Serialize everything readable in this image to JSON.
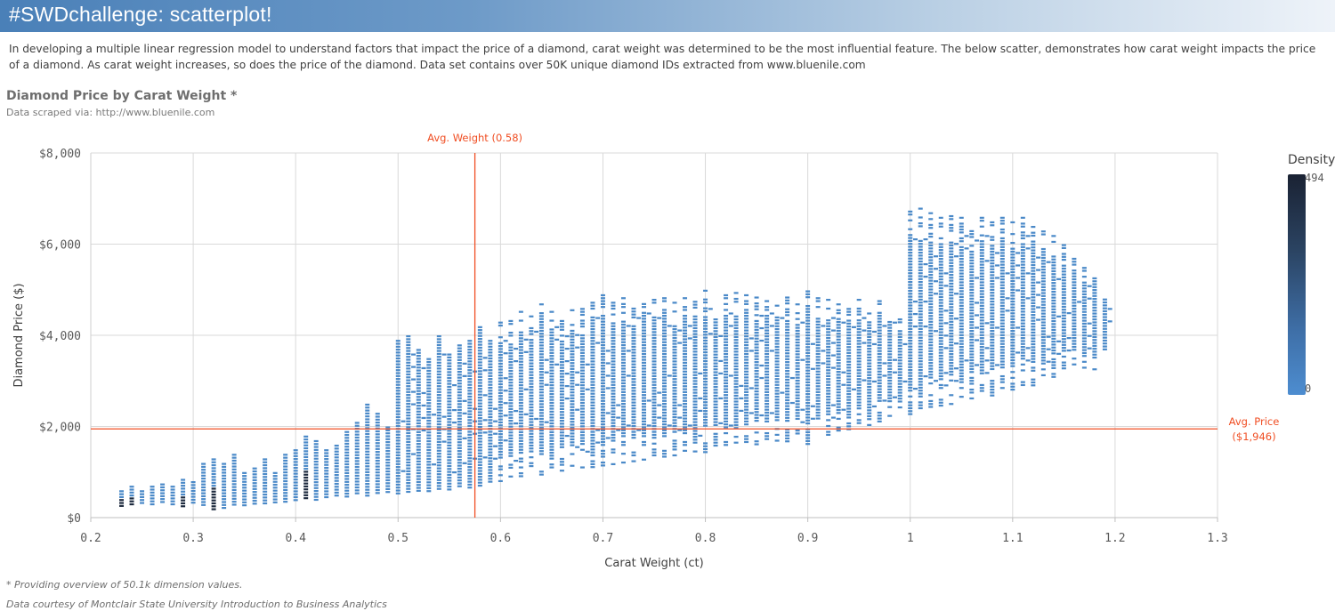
{
  "banner": {
    "title": "#SWDchallenge: scatterplot!"
  },
  "intro": {
    "text": "In developing a multiple linear regression model to understand factors that impact the price of a diamond, carat weight was determined to be the most influential feature. The below scatter, demonstrates how carat weight impacts the price of a diamond. As carat weight increases, so does the price of the diamond. Data set contains over 50K unique diamond IDs extracted from www.bluenile.com"
  },
  "chart_data": {
    "type": "scatter",
    "title": "Diamond Price by Carat Weight *",
    "subtitle": "Data scraped via: http://www.bluenile.com",
    "xlabel": "Carat Weight (ct)",
    "ylabel": "Diamond Price ($)",
    "xlim": [
      0.2,
      1.3
    ],
    "ylim": [
      0,
      8000
    ],
    "x_ticks": [
      "0.2",
      "0.3",
      "0.4",
      "0.5",
      "0.6",
      "0.7",
      "0.8",
      "0.9",
      "1",
      "1.1",
      "1.2",
      "1.3"
    ],
    "y_ticks": [
      "$0",
      "$2,000",
      "$4,000",
      "$6,000",
      "$8,000"
    ],
    "grid": true,
    "avg_weight": {
      "value": 0.575,
      "label": "Avg. Weight (0.58)",
      "color": "#f04e23"
    },
    "avg_price": {
      "value": 1946,
      "label_line1": "Avg. Price",
      "label_line2": "($1,946)",
      "color": "#f04e23"
    },
    "point_color": "#4a89c8",
    "dense_color": "#1e2b3f",
    "legend": {
      "title": "Density",
      "max": "494",
      "min": "0",
      "placement": "right"
    },
    "columns": [
      {
        "x": 0.23,
        "ymin": 250,
        "ymax": 600,
        "dense": true
      },
      {
        "x": 0.24,
        "ymin": 250,
        "ymax": 700,
        "dense": true
      },
      {
        "x": 0.25,
        "ymin": 300,
        "ymax": 600
      },
      {
        "x": 0.26,
        "ymin": 250,
        "ymax": 700
      },
      {
        "x": 0.27,
        "ymin": 300,
        "ymax": 750
      },
      {
        "x": 0.28,
        "ymin": 250,
        "ymax": 700
      },
      {
        "x": 0.29,
        "ymin": 250,
        "ymax": 850,
        "dense": true
      },
      {
        "x": 0.3,
        "ymin": 300,
        "ymax": 800
      },
      {
        "x": 0.31,
        "ymin": 250,
        "ymax": 1200
      },
      {
        "x": 0.32,
        "ymin": 200,
        "ymax": 1300,
        "dense": true
      },
      {
        "x": 0.33,
        "ymin": 200,
        "ymax": 1200
      },
      {
        "x": 0.34,
        "ymin": 250,
        "ymax": 1400
      },
      {
        "x": 0.35,
        "ymin": 250,
        "ymax": 1000
      },
      {
        "x": 0.36,
        "ymin": 300,
        "ymax": 1100
      },
      {
        "x": 0.37,
        "ymin": 300,
        "ymax": 1300
      },
      {
        "x": 0.38,
        "ymin": 350,
        "ymax": 1000
      },
      {
        "x": 0.39,
        "ymin": 350,
        "ymax": 1400
      },
      {
        "x": 0.4,
        "ymin": 350,
        "ymax": 1500
      },
      {
        "x": 0.41,
        "ymin": 400,
        "ymax": 1800,
        "dense": true
      },
      {
        "x": 0.42,
        "ymin": 400,
        "ymax": 1700
      },
      {
        "x": 0.43,
        "ymin": 450,
        "ymax": 1500
      },
      {
        "x": 0.44,
        "ymin": 500,
        "ymax": 1600
      },
      {
        "x": 0.45,
        "ymin": 450,
        "ymax": 1900
      },
      {
        "x": 0.46,
        "ymin": 500,
        "ymax": 2100
      },
      {
        "x": 0.47,
        "ymin": 450,
        "ymax": 2500
      },
      {
        "x": 0.48,
        "ymin": 500,
        "ymax": 2300
      },
      {
        "x": 0.49,
        "ymin": 550,
        "ymax": 2000
      },
      {
        "x": 0.5,
        "ymin": 500,
        "ymax": 3900
      },
      {
        "x": 0.51,
        "ymin": 550,
        "ymax": 4000
      },
      {
        "x": 0.52,
        "ymin": 550,
        "ymax": 3700
      },
      {
        "x": 0.53,
        "ymin": 600,
        "ymax": 3500
      },
      {
        "x": 0.54,
        "ymin": 600,
        "ymax": 4000
      },
      {
        "x": 0.55,
        "ymin": 600,
        "ymax": 3600
      },
      {
        "x": 0.56,
        "ymin": 650,
        "ymax": 3800
      },
      {
        "x": 0.57,
        "ymin": 650,
        "ymax": 3900
      },
      {
        "x": 0.58,
        "ymin": 700,
        "ymax": 4200
      },
      {
        "x": 0.59,
        "ymin": 750,
        "ymax": 3900
      },
      {
        "x": 0.6,
        "ymin": 800,
        "ymax": 4300
      },
      {
        "x": 0.61,
        "ymin": 850,
        "ymax": 4400
      },
      {
        "x": 0.62,
        "ymin": 850,
        "ymax": 4600
      },
      {
        "x": 0.63,
        "ymin": 900,
        "ymax": 4500
      },
      {
        "x": 0.64,
        "ymin": 950,
        "ymax": 4700
      },
      {
        "x": 0.65,
        "ymin": 950,
        "ymax": 4600
      },
      {
        "x": 0.66,
        "ymin": 1000,
        "ymax": 4400
      },
      {
        "x": 0.67,
        "ymin": 1000,
        "ymax": 4700
      },
      {
        "x": 0.68,
        "ymin": 1050,
        "ymax": 4600
      },
      {
        "x": 0.69,
        "ymin": 1100,
        "ymax": 4800
      },
      {
        "x": 0.7,
        "ymin": 1100,
        "ymax": 4900
      },
      {
        "x": 0.71,
        "ymin": 1150,
        "ymax": 4800
      },
      {
        "x": 0.72,
        "ymin": 1200,
        "ymax": 4900
      },
      {
        "x": 0.73,
        "ymin": 1200,
        "ymax": 4800
      },
      {
        "x": 0.74,
        "ymin": 1250,
        "ymax": 4900
      },
      {
        "x": 0.75,
        "ymin": 1300,
        "ymax": 4800
      },
      {
        "x": 0.76,
        "ymin": 1300,
        "ymax": 4900
      },
      {
        "x": 0.77,
        "ymin": 1350,
        "ymax": 4800
      },
      {
        "x": 0.78,
        "ymin": 1400,
        "ymax": 4900
      },
      {
        "x": 0.79,
        "ymin": 1400,
        "ymax": 4950
      },
      {
        "x": 0.8,
        "ymin": 1450,
        "ymax": 5000
      },
      {
        "x": 0.81,
        "ymin": 1500,
        "ymax": 4950
      },
      {
        "x": 0.82,
        "ymin": 1500,
        "ymax": 4900
      },
      {
        "x": 0.83,
        "ymin": 1550,
        "ymax": 4950
      },
      {
        "x": 0.84,
        "ymin": 1550,
        "ymax": 4900
      },
      {
        "x": 0.85,
        "ymin": 1600,
        "ymax": 4850
      },
      {
        "x": 0.86,
        "ymin": 1600,
        "ymax": 4900
      },
      {
        "x": 0.87,
        "ymin": 1650,
        "ymax": 4800
      },
      {
        "x": 0.88,
        "ymin": 1650,
        "ymax": 4850
      },
      {
        "x": 0.89,
        "ymin": 1700,
        "ymax": 4700
      },
      {
        "x": 0.9,
        "ymin": 1600,
        "ymax": 5050
      },
      {
        "x": 0.91,
        "ymin": 1700,
        "ymax": 4900
      },
      {
        "x": 0.92,
        "ymin": 1800,
        "ymax": 4800
      },
      {
        "x": 0.93,
        "ymin": 1850,
        "ymax": 4700
      },
      {
        "x": 0.94,
        "ymin": 1900,
        "ymax": 4600
      },
      {
        "x": 0.95,
        "ymin": 1950,
        "ymax": 4800
      },
      {
        "x": 0.96,
        "ymin": 2000,
        "ymax": 4500
      },
      {
        "x": 0.97,
        "ymin": 2100,
        "ymax": 4900
      },
      {
        "x": 0.98,
        "ymin": 2200,
        "ymax": 4700
      },
      {
        "x": 0.99,
        "ymin": 2300,
        "ymax": 4500
      },
      {
        "x": 1.0,
        "ymin": 2200,
        "ymax": 6800
      },
      {
        "x": 1.01,
        "ymin": 2300,
        "ymax": 6800
      },
      {
        "x": 1.02,
        "ymin": 2400,
        "ymax": 6700
      },
      {
        "x": 1.03,
        "ymin": 2400,
        "ymax": 6600
      },
      {
        "x": 1.04,
        "ymin": 2500,
        "ymax": 6700
      },
      {
        "x": 1.05,
        "ymin": 2600,
        "ymax": 6600
      },
      {
        "x": 1.06,
        "ymin": 2600,
        "ymax": 6500
      },
      {
        "x": 1.07,
        "ymin": 2700,
        "ymax": 6600
      },
      {
        "x": 1.08,
        "ymin": 2700,
        "ymax": 6500
      },
      {
        "x": 1.09,
        "ymin": 2800,
        "ymax": 6600
      },
      {
        "x": 1.1,
        "ymin": 2800,
        "ymax": 6500
      },
      {
        "x": 1.11,
        "ymin": 2900,
        "ymax": 6600
      },
      {
        "x": 1.12,
        "ymin": 2900,
        "ymax": 6400
      },
      {
        "x": 1.13,
        "ymin": 3000,
        "ymax": 6300
      },
      {
        "x": 1.14,
        "ymin": 3100,
        "ymax": 6200
      },
      {
        "x": 1.15,
        "ymin": 3200,
        "ymax": 6000
      },
      {
        "x": 1.16,
        "ymin": 3300,
        "ymax": 5700
      },
      {
        "x": 1.17,
        "ymin": 3300,
        "ymax": 5500
      },
      {
        "x": 1.18,
        "ymin": 3200,
        "ymax": 5400
      },
      {
        "x": 1.19,
        "ymin": 3500,
        "ymax": 5000
      }
    ]
  },
  "footnotes": {
    "note1": "* Providing overview of 50.1k dimension values.",
    "note2": "Data courtesy of Montclair State University Introduction to Business Analytics"
  }
}
